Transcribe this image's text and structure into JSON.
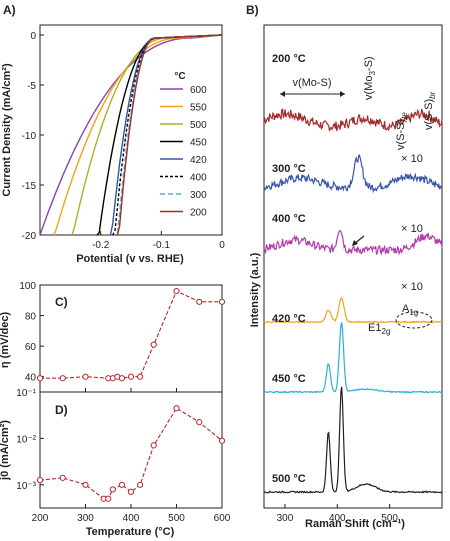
{
  "panel_labels": {
    "a": "A)",
    "b": "B)",
    "c": "C)",
    "d": "D)"
  },
  "chart_data": [
    {
      "id": "A",
      "type": "line",
      "xlabel": "Potential (v vs. RHE)",
      "ylabel": "Current Density (mA/cm²)",
      "xlim": [
        -0.3,
        0
      ],
      "ylim": [
        -20,
        1
      ],
      "x_ticks": [
        "-0.2",
        "-0.1",
        "0"
      ],
      "y_ticks": [
        "0",
        "-5",
        "-10",
        "-15",
        "-20"
      ],
      "legend_title": "°C",
      "legend_placement": "right",
      "series": [
        {
          "name": "600",
          "color": "#8b45a8",
          "dash": "",
          "onset": -0.05,
          "x20": -0.3
        },
        {
          "name": "550",
          "color": "#f2a31b",
          "dash": "",
          "onset": -0.07,
          "x20": -0.276
        },
        {
          "name": "500",
          "color": "#a7b429",
          "dash": "",
          "onset": -0.09,
          "x20": -0.246
        },
        {
          "name": "450",
          "color": "#000000",
          "dash": "",
          "onset": -0.105,
          "x20": -0.203
        },
        {
          "name": "420",
          "color": "#3555a4",
          "dash": "",
          "onset": -0.11,
          "x20": -0.182
        },
        {
          "name": "400",
          "color": "#000000",
          "dash": "3,2",
          "onset": -0.11,
          "x20": -0.177
        },
        {
          "name": "300",
          "color": "#46b8d8",
          "dash": "5,3",
          "onset": -0.11,
          "x20": -0.172
        },
        {
          "name": "200",
          "color": "#a52a2a",
          "dash": "",
          "onset": -0.11,
          "x20": -0.17
        }
      ]
    },
    {
      "id": "C",
      "type": "line",
      "ylabel": "η (mV/dec)",
      "xlim": [
        200,
        600
      ],
      "ylim": [
        30,
        100
      ],
      "y_ticks": [
        "40",
        "60",
        "80",
        "100"
      ],
      "color": "#b5282c",
      "x": [
        200,
        250,
        300,
        350,
        360,
        370,
        380,
        400,
        420,
        450,
        500,
        550,
        600
      ],
      "values": [
        39,
        39,
        40,
        39,
        39,
        40,
        39,
        40,
        40,
        61,
        96,
        89,
        89
      ]
    },
    {
      "id": "D",
      "type": "line",
      "ylabel": "j0 (mA/cm²)",
      "xlabel": "Temperature (°C)",
      "xlim": [
        200,
        600
      ],
      "ylim": [
        -3.5,
        -1
      ],
      "y_ticks": [
        "10⁻¹",
        "10⁻²",
        "10⁻³"
      ],
      "x_ticks": [
        "200",
        "300",
        "400",
        "500",
        "600"
      ],
      "color": "#b5282c",
      "x": [
        200,
        250,
        300,
        340,
        350,
        360,
        380,
        400,
        420,
        450,
        500,
        550,
        600
      ],
      "values": [
        -2.9,
        -2.85,
        -3.0,
        -3.3,
        -3.3,
        -3.1,
        -3.0,
        -3.15,
        -3.0,
        -2.15,
        -1.35,
        -1.65,
        -2.05
      ]
    },
    {
      "id": "B",
      "type": "line",
      "xlabel": "Raman Shift (cm⁻¹)",
      "ylabel": "Intensity (a.u.)",
      "xlim": [
        260,
        600
      ],
      "x_ticks": [
        "300",
        "400",
        "500"
      ],
      "series": [
        {
          "name": "200 °C",
          "color": "#a52a2a",
          "scale": ""
        },
        {
          "name": "300 °C",
          "color": "#3a55a8",
          "scale": "× 10"
        },
        {
          "name": "400 °C",
          "color": "#b13ea8",
          "scale": "× 10"
        },
        {
          "name": "420 °C",
          "color": "#f2a31b",
          "scale": "× 10"
        },
        {
          "name": "450 °C",
          "color": "#2bb0dc",
          "scale": ""
        },
        {
          "name": "500 °C",
          "color": "#222222",
          "scale": ""
        }
      ],
      "annotations": {
        "mos": "v(Mo-S)",
        "mo3s_a": "v(Mo",
        "mo3s_sub": "3",
        "mo3s_b": "-S)",
        "sste_a": "v(S-S)",
        "sste_sub": "te",
        "ssbr_a": "v(S-S)",
        "ssbr_sub": "br",
        "e2g_a": "E1",
        "e2g_sub": "2g",
        "a1g_a": "A",
        "a1g_sub": "1g"
      }
    }
  ]
}
